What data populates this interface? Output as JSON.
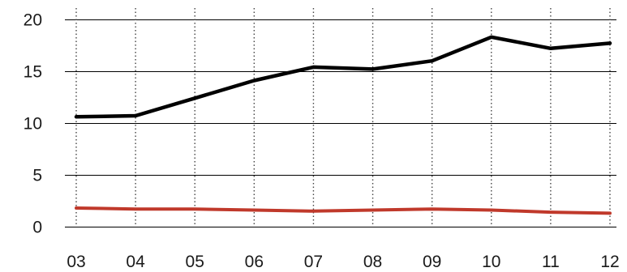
{
  "chart_data": {
    "type": "line",
    "title": "",
    "xlabel": "",
    "ylabel": "",
    "categories": [
      "03",
      "04",
      "05",
      "06",
      "07",
      "08",
      "09",
      "10",
      "11",
      "12"
    ],
    "yticks": [
      "0",
      "5",
      "10",
      "15",
      "20"
    ],
    "ylim": [
      0,
      20
    ],
    "grid": {
      "horizontal": "solid",
      "vertical": "dotted"
    },
    "series": [
      {
        "color": "#000000",
        "values": [
          10.6,
          10.7,
          12.4,
          14.1,
          15.4,
          15.2,
          16.0,
          18.3,
          17.2,
          17.7
        ]
      },
      {
        "color": "#c0392b",
        "values": [
          1.8,
          1.7,
          1.7,
          1.6,
          1.5,
          1.6,
          1.7,
          1.6,
          1.4,
          1.3
        ]
      }
    ]
  }
}
